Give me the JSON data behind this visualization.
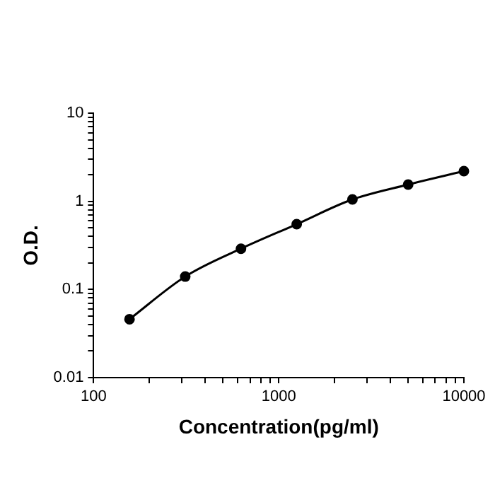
{
  "chart_data": {
    "type": "line",
    "xlabel": "Concentration(pg/ml)",
    "ylabel": "O.D.",
    "log": "xy",
    "grid": false,
    "legend": false,
    "marker": "circle",
    "line_style": "solid",
    "x": [
      156.25,
      312.5,
      625,
      1250,
      2500,
      5000,
      10000
    ],
    "series": [
      {
        "color": "#000000",
        "values": [
          0.046,
          0.14,
          0.29,
          0.55,
          1.05,
          1.55,
          2.2
        ]
      }
    ],
    "xlim": [
      100,
      10000
    ],
    "xticks": [
      100,
      {
        "value": 200,
        "label": null
      },
      {
        "value": 300,
        "label": null
      },
      {
        "value": 400,
        "label": null
      },
      {
        "value": 500,
        "label": null
      },
      {
        "value": 600,
        "label": null
      },
      {
        "value": 700,
        "label": null
      },
      {
        "value": 800,
        "label": null
      },
      {
        "value": 900,
        "label": null
      },
      1000,
      {
        "value": 2000,
        "label": null
      },
      {
        "value": 3000,
        "label": null
      },
      {
        "value": 4000,
        "label": null
      },
      {
        "value": 5000,
        "label": null
      },
      {
        "value": 6000,
        "label": null
      },
      {
        "value": 7000,
        "label": null
      },
      {
        "value": 8000,
        "label": null
      },
      {
        "value": 9000,
        "label": null
      },
      10000
    ],
    "ylim": [
      0.01,
      10
    ],
    "yticks": [
      0.01,
      {
        "value": 0.02,
        "label": null
      },
      {
        "value": 0.03,
        "label": null
      },
      {
        "value": 0.04,
        "label": null
      },
      {
        "value": 0.05,
        "label": null
      },
      {
        "value": 0.06,
        "label": null
      },
      {
        "value": 0.07,
        "label": null
      },
      {
        "value": 0.08,
        "label": null
      },
      {
        "value": 0.09,
        "label": null
      },
      0.1,
      {
        "value": 0.2,
        "label": null
      },
      {
        "value": 0.3,
        "label": null
      },
      {
        "value": 0.4,
        "label": null
      },
      {
        "value": 0.5,
        "label": null
      },
      {
        "value": 0.6,
        "label": null
      },
      {
        "value": 0.7,
        "label": null
      },
      {
        "value": 0.8,
        "label": null
      },
      {
        "value": 0.9,
        "label": null
      },
      1,
      {
        "value": 2,
        "label": null
      },
      {
        "value": 3,
        "label": null
      },
      {
        "value": 4,
        "label": null
      },
      {
        "value": 5,
        "label": null
      },
      {
        "value": 6,
        "label": null
      },
      {
        "value": 7,
        "label": null
      },
      {
        "value": 8,
        "label": null
      },
      {
        "value": 9,
        "label": null
      },
      10
    ]
  }
}
